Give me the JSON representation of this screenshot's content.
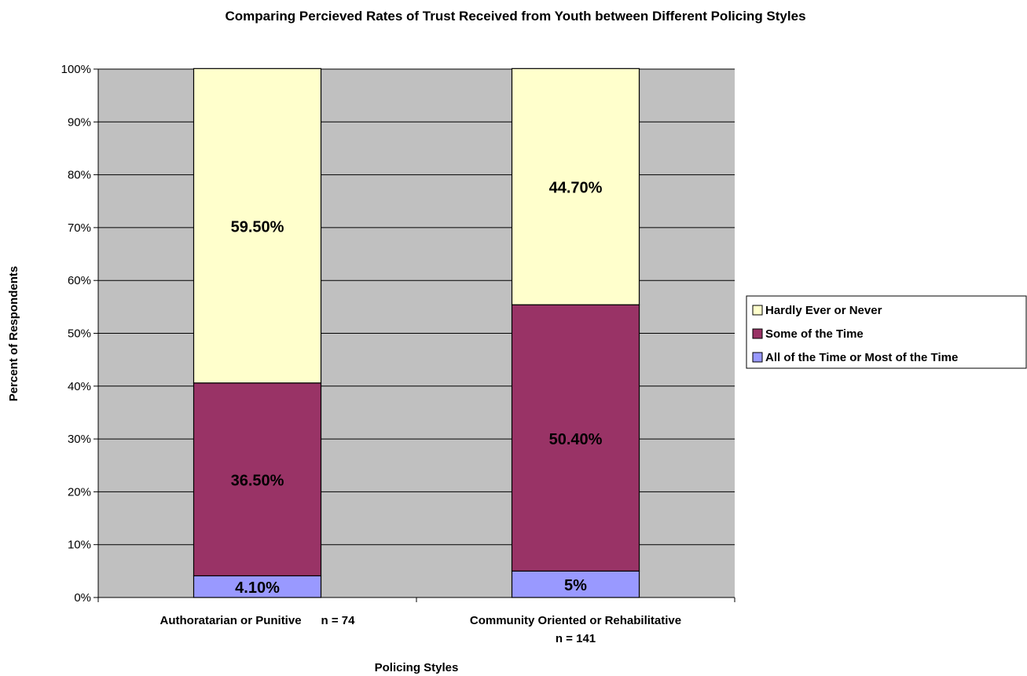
{
  "chart_data": {
    "type": "bar",
    "stacked": true,
    "percent_stacked": true,
    "title": "Comparing Percieved Rates of Trust Received from Youth between Different Policing Styles",
    "xlabel": "Policing Styles",
    "ylabel": "Percent of Respondents",
    "categories": [
      [
        "Authoratarian or Punitive      n = 74"
      ],
      [
        "Community Oriented or Rehabilitative",
        "n = 141"
      ]
    ],
    "ylim": [
      0,
      100
    ],
    "yticks": [
      "0%",
      "10%",
      "20%",
      "30%",
      "40%",
      "50%",
      "60%",
      "70%",
      "80%",
      "90%",
      "100%"
    ],
    "grid": true,
    "legend_position": "right",
    "plot_background": "#c0c0c0",
    "series": [
      {
        "name": "All of the Time or Most of the Time",
        "color": "#9999ff",
        "values": [
          4.1,
          5.0
        ],
        "labels": [
          "4.10%",
          "5%"
        ]
      },
      {
        "name": "Some of the Time",
        "color": "#993366",
        "values": [
          36.5,
          50.4
        ],
        "labels": [
          "36.50%",
          "50.40%"
        ]
      },
      {
        "name": "Hardly Ever or Never",
        "color": "#ffffcc",
        "values": [
          59.5,
          44.7
        ],
        "labels": [
          "59.50%",
          "44.70%"
        ]
      }
    ],
    "legend_order": [
      "Hardly Ever or Never",
      "Some of the Time",
      "All of the Time or Most of the Time"
    ]
  }
}
